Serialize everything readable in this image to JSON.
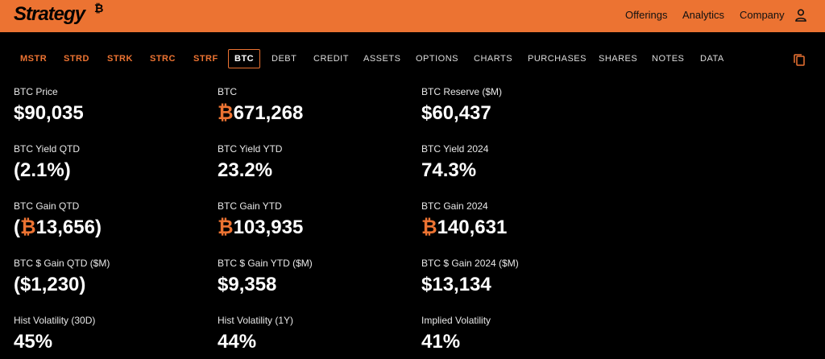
{
  "brand": {
    "name": "Strategy",
    "mark": "₿"
  },
  "header": {
    "nav": [
      "Offerings",
      "Analytics",
      "Company"
    ],
    "user_icon": "user-icon"
  },
  "tabs": [
    "MSTR",
    "STRD",
    "STRK",
    "STRC",
    "STRF",
    "BTC",
    "DEBT",
    "CREDIT",
    "ASSETS",
    "OPTIONS",
    "CHARTS",
    "PURCHASES",
    "SHARES",
    "NOTES",
    "DATA"
  ],
  "active_tab": "BTC",
  "copy_icon": "copy-icon",
  "colors": {
    "accent": "#EC7332",
    "background": "#000000"
  },
  "stats": {
    "btc_price": {
      "label": "BTC Price",
      "value": "$90,035"
    },
    "btc": {
      "label": "BTC",
      "symbol": "₿",
      "value": "671,268"
    },
    "btc_reserve": {
      "label": "BTC Reserve ($M)",
      "value": "$60,437"
    },
    "yield_qtd": {
      "label": "BTC Yield QTD",
      "value": "(2.1%)"
    },
    "yield_ytd": {
      "label": "BTC Yield YTD",
      "value": "23.2%"
    },
    "yield_2024": {
      "label": "BTC Yield 2024",
      "value": "74.3%"
    },
    "gain_qtd": {
      "label": "BTC Gain QTD",
      "prefix": "(",
      "symbol": "₿",
      "value": "13,656)"
    },
    "gain_ytd": {
      "label": "BTC Gain YTD",
      "symbol": "₿",
      "value": "103,935"
    },
    "gain_2024": {
      "label": "BTC Gain 2024",
      "symbol": "₿",
      "value": "140,631"
    },
    "usd_gain_qtd": {
      "label": "BTC $ Gain QTD ($M)",
      "value": "($1,230)"
    },
    "usd_gain_ytd": {
      "label": "BTC $ Gain YTD ($M)",
      "value": "$9,358"
    },
    "usd_gain_2024": {
      "label": "BTC $ Gain 2024 ($M)",
      "value": "$13,134"
    },
    "hist_vol_30d": {
      "label": "Hist Volatility (30D)",
      "value": "45%"
    },
    "hist_vol_1y": {
      "label": "Hist Volatility (1Y)",
      "value": "44%"
    },
    "implied_vol": {
      "label": "Implied Volatility",
      "value": "41%"
    }
  }
}
